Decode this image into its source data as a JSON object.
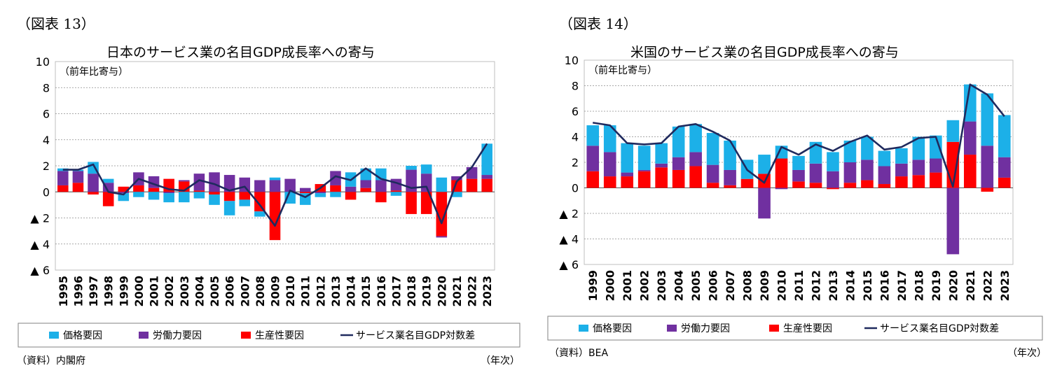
{
  "legend": {
    "price": "価格要因",
    "labor": "労働力要因",
    "productivity": "生産性要因",
    "line": "サービス業名目GDP対数差"
  },
  "colors": {
    "price": "#1cb0e8",
    "labor": "#7030a0",
    "productivity": "#ff0000",
    "line": "#1f2a5e",
    "grid": "#8c8c8c"
  },
  "chart_data": [
    {
      "id": "japan",
      "type": "bar",
      "stacked": true,
      "figure_label": "（図表 13）",
      "title": "日本のサービス業の名目GDP成長率への寄与",
      "ylabel": "（前年比寄与）",
      "xunit": "（年次）",
      "source": "（資料）内閣府",
      "ylim": [
        -6,
        10
      ],
      "yticks": [
        10,
        8,
        6,
        4,
        2,
        0,
        -2,
        -4,
        -6
      ],
      "ytick_labels": [
        "10",
        "8",
        "6",
        "4",
        "2",
        "0",
        "▲ 2",
        "▲ 4",
        "▲ 6"
      ],
      "categories": [
        "1995",
        "1996",
        "1997",
        "1998",
        "1999",
        "2000",
        "2001",
        "2002",
        "2003",
        "2004",
        "2005",
        "2006",
        "2007",
        "2008",
        "2009",
        "2010",
        "2011",
        "2012",
        "2013",
        "2014",
        "2015",
        "2016",
        "2017",
        "2018",
        "2019",
        "2020",
        "2021",
        "2022",
        "2023"
      ],
      "series": [
        {
          "name": "生産性要因",
          "key": "productivity",
          "values": [
            0.5,
            0.7,
            -0.2,
            -1.1,
            0.4,
            0.5,
            0.3,
            1.0,
            0.8,
            0.1,
            -0.2,
            -0.7,
            -0.6,
            -1.5,
            -3.7,
            0.0,
            -0.1,
            0.6,
            0.5,
            -0.6,
            0.3,
            -0.8,
            0.1,
            -1.7,
            -1.7,
            -3.4,
            0.9,
            1.0,
            1.0
          ]
        },
        {
          "name": "労働力要因",
          "key": "labor",
          "values": [
            1.1,
            0.9,
            1.4,
            0.7,
            -0.1,
            1.0,
            0.9,
            -0.1,
            0.1,
            1.3,
            1.5,
            1.3,
            1.1,
            0.9,
            0.9,
            1.0,
            0.3,
            -0.1,
            1.1,
            0.4,
            0.6,
            0.9,
            0.9,
            1.7,
            1.4,
            -0.1,
            0.3,
            0.9,
            0.3
          ]
        },
        {
          "name": "価格要因",
          "key": "price",
          "values": [
            0.2,
            0.1,
            0.9,
            0.3,
            -0.6,
            -0.4,
            -0.6,
            -0.7,
            -0.8,
            -0.5,
            -0.8,
            -1.1,
            -0.5,
            -0.4,
            0.2,
            -0.9,
            -0.9,
            -0.3,
            -0.4,
            1.1,
            0.9,
            0.9,
            -0.3,
            0.3,
            0.7,
            1.1,
            -0.4,
            0.0,
            2.4
          ]
        }
      ],
      "line": {
        "name": "サービス業名目GDP対数差",
        "values": [
          1.7,
          1.7,
          2.1,
          0.0,
          -0.2,
          1.0,
          0.6,
          0.2,
          0.1,
          0.9,
          0.6,
          0.1,
          0.4,
          -1.0,
          -2.6,
          0.1,
          -0.4,
          0.3,
          1.2,
          0.9,
          1.8,
          1.0,
          0.7,
          0.3,
          0.4,
          -2.4,
          0.8,
          1.9,
          3.7
        ]
      }
    },
    {
      "id": "us",
      "type": "bar",
      "stacked": true,
      "figure_label": "（図表 14）",
      "title": "米国のサービス業の名目GDP成長率への寄与",
      "ylabel": "（前年比寄与）",
      "xunit": "（年次）",
      "source": "（資料）BEA",
      "ylim": [
        -6,
        10
      ],
      "yticks": [
        10,
        8,
        6,
        4,
        2,
        0,
        -2,
        -4,
        -6
      ],
      "ytick_labels": [
        "10",
        "8",
        "6",
        "4",
        "2",
        "0",
        "▲ 2",
        "▲ 4",
        "▲ 6"
      ],
      "categories": [
        "1999",
        "2000",
        "2001",
        "2002",
        "2003",
        "2004",
        "2005",
        "2006",
        "2007",
        "2008",
        "2009",
        "2010",
        "2011",
        "2012",
        "2013",
        "2014",
        "2015",
        "2016",
        "2017",
        "2018",
        "2019",
        "2020",
        "2021",
        "2022",
        "2023"
      ],
      "series": [
        {
          "name": "生産性要因",
          "key": "productivity",
          "values": [
            1.3,
            0.9,
            0.9,
            1.3,
            1.6,
            1.4,
            1.7,
            0.4,
            0.2,
            0.7,
            1.1,
            2.3,
            0.5,
            0.4,
            -0.1,
            0.4,
            0.6,
            0.3,
            0.9,
            1.0,
            1.2,
            3.6,
            2.6,
            -0.3,
            0.8
          ]
        },
        {
          "name": "労働力要因",
          "key": "labor",
          "values": [
            2.0,
            1.9,
            0.3,
            0.1,
            0.3,
            1.0,
            1.1,
            1.4,
            1.2,
            0.0,
            -2.4,
            -0.1,
            0.9,
            1.5,
            1.3,
            1.6,
            1.6,
            1.4,
            1.0,
            1.2,
            1.1,
            -5.2,
            2.6,
            3.3,
            1.6
          ]
        },
        {
          "name": "価格要因",
          "key": "price",
          "values": [
            1.6,
            2.1,
            2.3,
            1.9,
            1.6,
            2.4,
            2.2,
            2.5,
            2.3,
            1.5,
            1.5,
            1.0,
            1.1,
            1.7,
            1.5,
            1.7,
            1.8,
            1.2,
            1.2,
            1.8,
            1.8,
            1.7,
            2.9,
            4.1,
            3.3
          ]
        }
      ],
      "line": {
        "name": "サービス業名目GDP対数差",
        "values": [
          5.1,
          4.9,
          3.5,
          3.4,
          3.5,
          4.8,
          5.0,
          4.4,
          3.7,
          1.4,
          0.4,
          3.2,
          2.6,
          3.4,
          2.9,
          3.6,
          4.1,
          3.0,
          3.2,
          3.9,
          4.0,
          0.1,
          8.1,
          7.3,
          5.6
        ]
      }
    }
  ]
}
